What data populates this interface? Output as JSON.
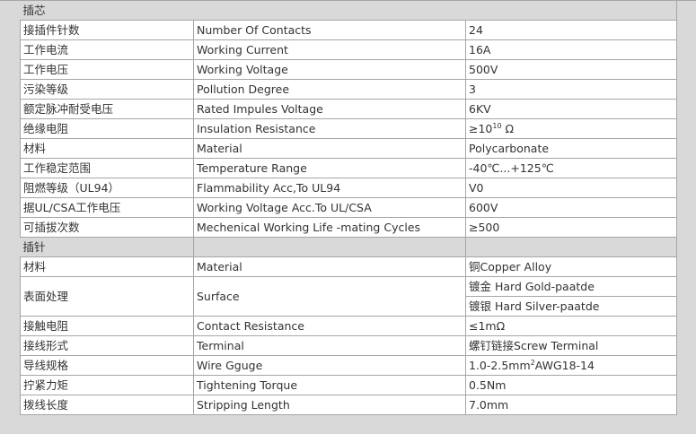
{
  "sections": [
    {
      "title": "插芯",
      "rows": [
        {
          "cn": "接插件针数",
          "en": "Number Of Contacts",
          "value": "24"
        },
        {
          "cn": "工作电流",
          "en": "Working Current",
          "value": "16A"
        },
        {
          "cn": "工作电压",
          "en": "Working Voltage",
          "value": "500V"
        },
        {
          "cn": "污染等级",
          "en": "Pollution Degree",
          "value": "3"
        },
        {
          "cn": "额定脉冲耐受电压",
          "en": "Rated Impules Voltage",
          "value": "6KV"
        },
        {
          "cn": "绝缘电阻",
          "en": "Insulation Resistance",
          "value_pre": "≥10",
          "value_sup": "10",
          "value_post": " Ω"
        },
        {
          "cn": "材料",
          "en": "Material",
          "value": "Polycarbonate"
        },
        {
          "cn": "工作稳定范围",
          "en": "Temperature Range",
          "value": "-40℃...+125℃"
        },
        {
          "cn": "阻燃等级（UL94）",
          "en": "Flammability Acc,To UL94",
          "value": "V0"
        },
        {
          "cn": "据UL/CSA工作电压",
          "en": "Working Voltage Acc.To UL/CSA",
          "value": "600V"
        },
        {
          "cn": "可插拔次数",
          "en": "Mechenical Working Life -mating Cycles",
          "value": "≥500"
        }
      ]
    },
    {
      "title": "插针",
      "rows": [
        {
          "cn": "材料",
          "en": "Material",
          "value": "铜Copper Alloy"
        },
        {
          "cn": "表面处理",
          "en": "Surface",
          "values": [
            "镀金 Hard Gold-paatde",
            "镀银 Hard Silver-paatde"
          ]
        },
        {
          "cn": "接触电阻",
          "en": "Contact Resistance",
          "value": "≤1mΩ"
        },
        {
          "cn": "接线形式",
          "en": "Terminal",
          "value": "螺钉链接Screw Terminal"
        },
        {
          "cn": "导线规格",
          "en": "Wire Gguge",
          "value_pre": "1.0-2.5mm",
          "value_sup": "2",
          "value_post": "AWG18-14"
        },
        {
          "cn": "拧紧力矩",
          "en": "Tightening Torque",
          "value": "0.5Nm"
        },
        {
          "cn": "拨线长度",
          "en": "Stripping Length",
          "value": "7.0mm"
        }
      ]
    }
  ]
}
